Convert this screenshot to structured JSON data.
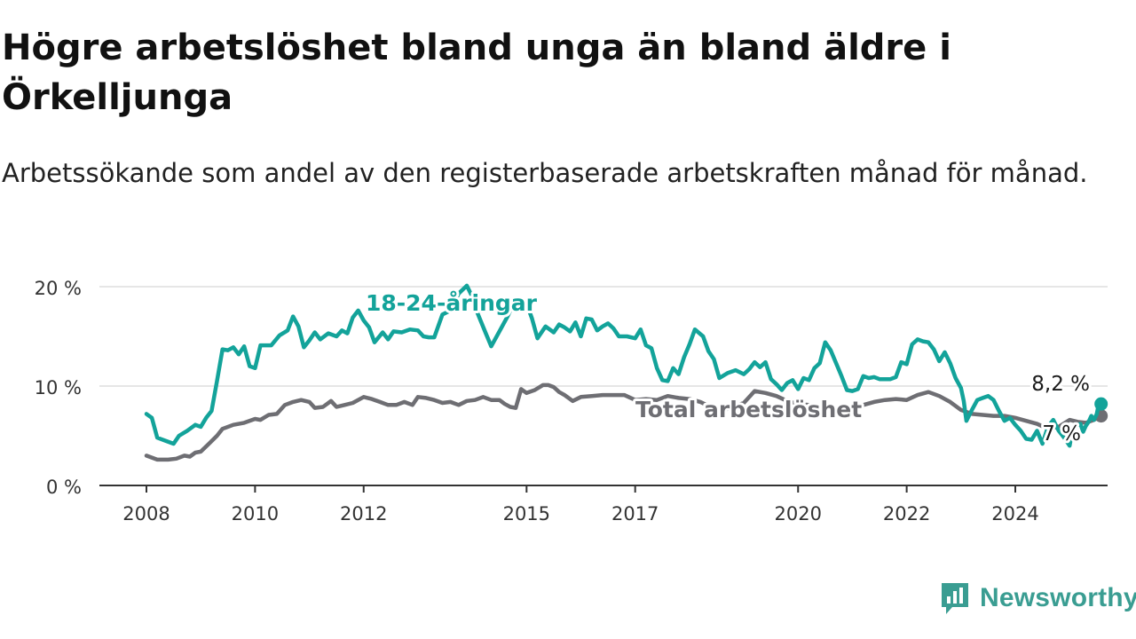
{
  "header": {
    "title": "Högre arbetslöshet bland unga än bland äldre i Örkelljunga",
    "subtitle": "Arbetssökande som andel av den registerbaserade arbetskraften månad för månad."
  },
  "brand": {
    "name": "Newsworthy",
    "color": "#3a9d92",
    "icon": "newsworthy-logo-icon"
  },
  "chart_data": {
    "type": "line",
    "title": "Högre arbetslöshet bland unga än bland äldre i Örkelljunga",
    "subtitle": "Arbetssökande som andel av den registerbaserade arbetskraften månad för månad.",
    "xlabel": "",
    "ylabel": "",
    "xlim": [
      2007.9,
      2025.6
    ],
    "ylim": [
      0,
      20
    ],
    "grid": true,
    "legend": "inline-labels",
    "x_ticks": [
      {
        "value": 2008,
        "label": "2008"
      },
      {
        "value": 2010,
        "label": "2010"
      },
      {
        "value": 2012,
        "label": "2012"
      },
      {
        "value": 2015,
        "label": "2015"
      },
      {
        "value": 2017,
        "label": "2017"
      },
      {
        "value": 2020,
        "label": "2020"
      },
      {
        "value": 2022,
        "label": "2022"
      },
      {
        "value": 2024,
        "label": "2024"
      }
    ],
    "y_ticks": [
      {
        "value": 0,
        "label": "0 %"
      },
      {
        "value": 10,
        "label": "10 %"
      },
      {
        "value": 20,
        "label": "20 %"
      }
    ],
    "series": [
      {
        "name": "18-24-åringar",
        "color": "#13a39a",
        "end_label": "8,2 %",
        "points": [
          [
            2008.0,
            7.2
          ],
          [
            2008.1,
            6.8
          ],
          [
            2008.2,
            4.8
          ],
          [
            2008.35,
            4.5
          ],
          [
            2008.5,
            4.2
          ],
          [
            2008.6,
            5.0
          ],
          [
            2008.75,
            5.5
          ],
          [
            2008.9,
            6.1
          ],
          [
            2009.0,
            5.9
          ],
          [
            2009.1,
            6.8
          ],
          [
            2009.2,
            7.5
          ],
          [
            2009.3,
            10.5
          ],
          [
            2009.4,
            13.7
          ],
          [
            2009.5,
            13.6
          ],
          [
            2009.6,
            13.9
          ],
          [
            2009.7,
            13.2
          ],
          [
            2009.8,
            14.0
          ],
          [
            2009.9,
            12.0
          ],
          [
            2010.0,
            11.8
          ],
          [
            2010.1,
            14.1
          ],
          [
            2010.3,
            14.1
          ],
          [
            2010.45,
            15.1
          ],
          [
            2010.6,
            15.6
          ],
          [
            2010.7,
            17.0
          ],
          [
            2010.8,
            16.0
          ],
          [
            2010.9,
            13.9
          ],
          [
            2011.0,
            14.6
          ],
          [
            2011.1,
            15.4
          ],
          [
            2011.2,
            14.7
          ],
          [
            2011.35,
            15.3
          ],
          [
            2011.5,
            15.0
          ],
          [
            2011.6,
            15.6
          ],
          [
            2011.7,
            15.3
          ],
          [
            2011.8,
            16.9
          ],
          [
            2011.9,
            17.6
          ],
          [
            2012.0,
            16.6
          ],
          [
            2012.1,
            15.9
          ],
          [
            2012.2,
            14.4
          ],
          [
            2012.35,
            15.4
          ],
          [
            2012.45,
            14.7
          ],
          [
            2012.55,
            15.5
          ],
          [
            2012.7,
            15.4
          ],
          [
            2012.85,
            15.7
          ],
          [
            2013.0,
            15.6
          ],
          [
            2013.1,
            15.0
          ],
          [
            2013.2,
            14.9
          ],
          [
            2013.3,
            14.9
          ],
          [
            2013.45,
            17.2
          ],
          [
            2013.6,
            17.6
          ],
          [
            2013.75,
            19.3
          ],
          [
            2013.9,
            20.1
          ],
          [
            2014.0,
            19.0
          ],
          [
            2014.1,
            17.3
          ],
          [
            2014.25,
            15.3
          ],
          [
            2014.35,
            14.0
          ],
          [
            2014.5,
            15.5
          ],
          [
            2014.65,
            17.0
          ],
          [
            2014.8,
            18.8
          ],
          [
            2015.0,
            18.3
          ],
          [
            2015.1,
            16.8
          ],
          [
            2015.2,
            14.8
          ],
          [
            2015.35,
            16.0
          ],
          [
            2015.5,
            15.4
          ],
          [
            2015.6,
            16.2
          ],
          [
            2015.7,
            15.9
          ],
          [
            2015.8,
            15.5
          ],
          [
            2015.9,
            16.4
          ],
          [
            2016.0,
            15.0
          ],
          [
            2016.1,
            16.8
          ],
          [
            2016.2,
            16.7
          ],
          [
            2016.3,
            15.6
          ],
          [
            2016.4,
            16.0
          ],
          [
            2016.5,
            16.3
          ],
          [
            2016.6,
            15.8
          ],
          [
            2016.7,
            15.0
          ],
          [
            2016.85,
            15.0
          ],
          [
            2017.0,
            14.8
          ],
          [
            2017.1,
            15.7
          ],
          [
            2017.2,
            14.1
          ],
          [
            2017.3,
            13.8
          ],
          [
            2017.4,
            11.8
          ],
          [
            2017.5,
            10.6
          ],
          [
            2017.6,
            10.5
          ],
          [
            2017.7,
            11.8
          ],
          [
            2017.8,
            11.2
          ],
          [
            2017.9,
            12.9
          ],
          [
            2018.0,
            14.2
          ],
          [
            2018.1,
            15.7
          ],
          [
            2018.25,
            15.0
          ],
          [
            2018.35,
            13.5
          ],
          [
            2018.45,
            12.7
          ],
          [
            2018.55,
            10.8
          ],
          [
            2018.7,
            11.3
          ],
          [
            2018.85,
            11.6
          ],
          [
            2019.0,
            11.2
          ],
          [
            2019.1,
            11.7
          ],
          [
            2019.2,
            12.4
          ],
          [
            2019.3,
            11.9
          ],
          [
            2019.4,
            12.4
          ],
          [
            2019.5,
            10.7
          ],
          [
            2019.6,
            10.2
          ],
          [
            2019.7,
            9.6
          ],
          [
            2019.8,
            10.3
          ],
          [
            2019.9,
            10.6
          ],
          [
            2020.0,
            9.7
          ],
          [
            2020.1,
            10.8
          ],
          [
            2020.2,
            10.6
          ],
          [
            2020.3,
            11.8
          ],
          [
            2020.4,
            12.3
          ],
          [
            2020.5,
            14.4
          ],
          [
            2020.6,
            13.6
          ],
          [
            2020.7,
            12.3
          ],
          [
            2020.8,
            11.0
          ],
          [
            2020.9,
            9.6
          ],
          [
            2021.0,
            9.5
          ],
          [
            2021.1,
            9.7
          ],
          [
            2021.2,
            11.0
          ],
          [
            2021.3,
            10.8
          ],
          [
            2021.4,
            10.9
          ],
          [
            2021.5,
            10.7
          ],
          [
            2021.6,
            10.7
          ],
          [
            2021.7,
            10.7
          ],
          [
            2021.8,
            10.9
          ],
          [
            2021.9,
            12.4
          ],
          [
            2022.0,
            12.2
          ],
          [
            2022.1,
            14.2
          ],
          [
            2022.2,
            14.7
          ],
          [
            2022.3,
            14.5
          ],
          [
            2022.4,
            14.4
          ],
          [
            2022.5,
            13.7
          ],
          [
            2022.6,
            12.5
          ],
          [
            2022.7,
            13.4
          ],
          [
            2022.8,
            12.3
          ],
          [
            2022.9,
            10.8
          ],
          [
            2023.0,
            9.8
          ],
          [
            2023.05,
            8.5
          ],
          [
            2023.1,
            6.5
          ],
          [
            2023.2,
            7.6
          ],
          [
            2023.3,
            8.6
          ],
          [
            2023.4,
            8.8
          ],
          [
            2023.5,
            9.0
          ],
          [
            2023.6,
            8.6
          ],
          [
            2023.7,
            7.5
          ],
          [
            2023.8,
            6.5
          ],
          [
            2023.9,
            6.8
          ],
          [
            2024.0,
            6.1
          ],
          [
            2024.1,
            5.5
          ],
          [
            2024.2,
            4.7
          ],
          [
            2024.3,
            4.6
          ],
          [
            2024.4,
            5.5
          ],
          [
            2024.5,
            4.2
          ],
          [
            2024.6,
            5.9
          ],
          [
            2024.7,
            6.6
          ],
          [
            2024.8,
            5.5
          ],
          [
            2024.9,
            4.8
          ],
          [
            2025.0,
            4.0
          ],
          [
            2025.05,
            5.5
          ],
          [
            2025.1,
            6.0
          ],
          [
            2025.15,
            6.1
          ],
          [
            2025.2,
            6.2
          ],
          [
            2025.25,
            5.4
          ],
          [
            2025.3,
            6.0
          ],
          [
            2025.35,
            6.4
          ],
          [
            2025.4,
            7.0
          ],
          [
            2025.45,
            6.6
          ],
          [
            2025.5,
            7.2
          ],
          [
            2025.55,
            8.6
          ],
          [
            2025.58,
            8.2
          ]
        ]
      },
      {
        "name": "Total arbetslöshet",
        "color": "#6e6e73",
        "end_label": "7 %",
        "points": [
          [
            2008.0,
            3.0
          ],
          [
            2008.2,
            2.6
          ],
          [
            2008.4,
            2.6
          ],
          [
            2008.55,
            2.7
          ],
          [
            2008.7,
            3.0
          ],
          [
            2008.8,
            2.9
          ],
          [
            2008.9,
            3.3
          ],
          [
            2009.0,
            3.4
          ],
          [
            2009.15,
            4.2
          ],
          [
            2009.3,
            5.0
          ],
          [
            2009.4,
            5.7
          ],
          [
            2009.6,
            6.1
          ],
          [
            2009.8,
            6.3
          ],
          [
            2010.0,
            6.7
          ],
          [
            2010.1,
            6.6
          ],
          [
            2010.25,
            7.1
          ],
          [
            2010.4,
            7.2
          ],
          [
            2010.55,
            8.1
          ],
          [
            2010.7,
            8.4
          ],
          [
            2010.85,
            8.6
          ],
          [
            2011.0,
            8.4
          ],
          [
            2011.1,
            7.8
          ],
          [
            2011.25,
            7.9
          ],
          [
            2011.4,
            8.5
          ],
          [
            2011.5,
            7.9
          ],
          [
            2011.65,
            8.1
          ],
          [
            2011.8,
            8.3
          ],
          [
            2012.0,
            8.9
          ],
          [
            2012.15,
            8.7
          ],
          [
            2012.3,
            8.4
          ],
          [
            2012.45,
            8.1
          ],
          [
            2012.6,
            8.1
          ],
          [
            2012.75,
            8.4
          ],
          [
            2012.9,
            8.1
          ],
          [
            2013.0,
            8.9
          ],
          [
            2013.15,
            8.8
          ],
          [
            2013.3,
            8.6
          ],
          [
            2013.45,
            8.3
          ],
          [
            2013.6,
            8.4
          ],
          [
            2013.75,
            8.1
          ],
          [
            2013.9,
            8.5
          ],
          [
            2014.05,
            8.6
          ],
          [
            2014.2,
            8.9
          ],
          [
            2014.35,
            8.6
          ],
          [
            2014.5,
            8.6
          ],
          [
            2014.6,
            8.2
          ],
          [
            2014.7,
            7.9
          ],
          [
            2014.8,
            7.8
          ],
          [
            2014.9,
            9.7
          ],
          [
            2015.0,
            9.3
          ],
          [
            2015.15,
            9.6
          ],
          [
            2015.3,
            10.1
          ],
          [
            2015.4,
            10.1
          ],
          [
            2015.5,
            9.9
          ],
          [
            2015.6,
            9.4
          ],
          [
            2015.7,
            9.1
          ],
          [
            2015.85,
            8.5
          ],
          [
            2016.0,
            8.9
          ],
          [
            2016.2,
            9.0
          ],
          [
            2016.4,
            9.1
          ],
          [
            2016.6,
            9.1
          ],
          [
            2016.8,
            9.1
          ],
          [
            2017.0,
            8.6
          ],
          [
            2017.2,
            8.7
          ],
          [
            2017.4,
            8.6
          ],
          [
            2017.6,
            9.0
          ],
          [
            2017.8,
            8.8
          ],
          [
            2018.0,
            8.7
          ],
          [
            2018.2,
            8.4
          ],
          [
            2018.35,
            8.0
          ],
          [
            2018.5,
            7.5
          ],
          [
            2018.7,
            7.7
          ],
          [
            2018.85,
            8.0
          ],
          [
            2019.0,
            8.3
          ],
          [
            2019.2,
            9.5
          ],
          [
            2019.4,
            9.3
          ],
          [
            2019.6,
            9.0
          ],
          [
            2019.8,
            8.5
          ],
          [
            2020.0,
            8.2
          ],
          [
            2020.2,
            8.1
          ],
          [
            2020.4,
            7.9
          ],
          [
            2020.6,
            7.7
          ],
          [
            2020.8,
            7.5
          ],
          [
            2021.0,
            7.7
          ],
          [
            2021.2,
            8.1
          ],
          [
            2021.4,
            8.4
          ],
          [
            2021.6,
            8.6
          ],
          [
            2021.8,
            8.7
          ],
          [
            2022.0,
            8.6
          ],
          [
            2022.2,
            9.1
          ],
          [
            2022.4,
            9.4
          ],
          [
            2022.6,
            9.0
          ],
          [
            2022.8,
            8.4
          ],
          [
            2023.0,
            7.6
          ],
          [
            2023.2,
            7.2
          ],
          [
            2023.4,
            7.1
          ],
          [
            2023.6,
            7.0
          ],
          [
            2023.8,
            7.0
          ],
          [
            2024.0,
            6.8
          ],
          [
            2024.2,
            6.5
          ],
          [
            2024.4,
            6.2
          ],
          [
            2024.6,
            5.7
          ],
          [
            2024.8,
            5.9
          ],
          [
            2025.0,
            6.6
          ],
          [
            2025.15,
            6.4
          ],
          [
            2025.3,
            6.3
          ],
          [
            2025.45,
            6.6
          ],
          [
            2025.58,
            7.0
          ]
        ]
      }
    ]
  }
}
